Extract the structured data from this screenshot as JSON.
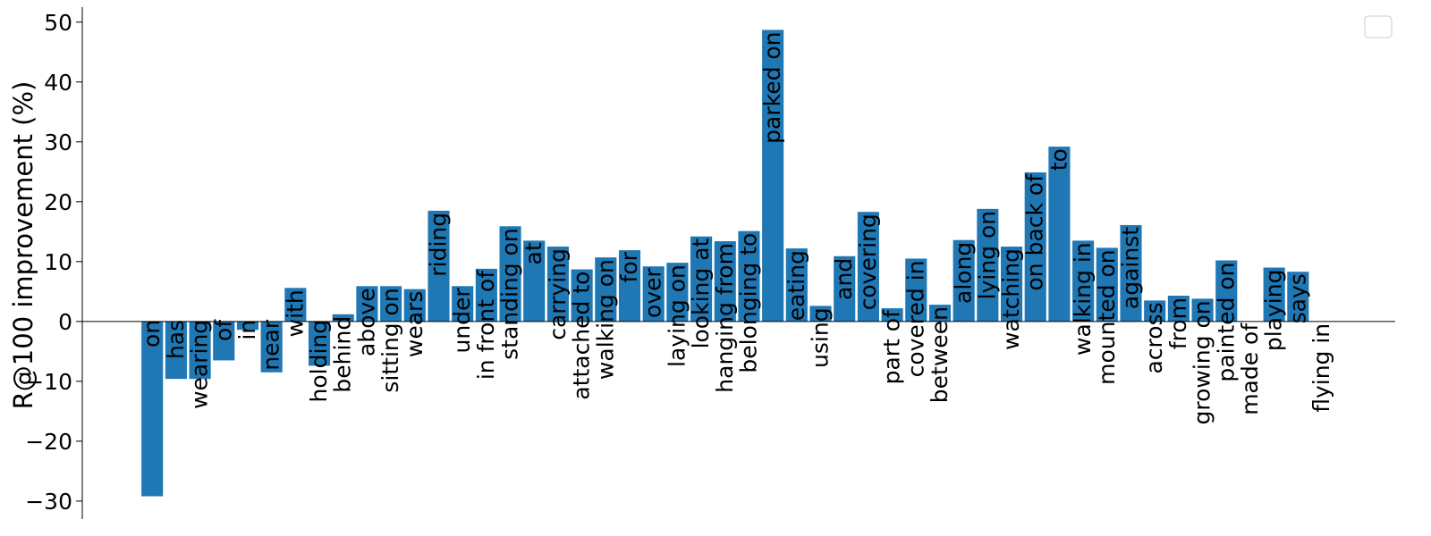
{
  "chart_data": {
    "type": "bar",
    "title": "",
    "xlabel": "",
    "ylabel": "R@100 improvement (%)",
    "ylim": [
      -33,
      52.5
    ],
    "yticks": [
      -30,
      -20,
      -10,
      0,
      10,
      20,
      30,
      40,
      50
    ],
    "bar_color": "#1f77b4",
    "grid": false,
    "legend": "top-right",
    "categories": [
      "on",
      "has",
      "wearing",
      "of",
      "in",
      "near",
      "with",
      "holding",
      "behind",
      "above",
      "sitting on",
      "wears",
      "riding",
      "under",
      "in front of",
      "standing on",
      "at",
      "carrying",
      "attached to",
      "walking on",
      "for",
      "over",
      "laying on",
      "looking at",
      "hanging from",
      "belonging to",
      "parked on",
      "eating",
      "using",
      "and",
      "covering",
      "part of",
      "covered in",
      "between",
      "along",
      "lying on",
      "watching",
      "on back of",
      "to",
      "walking in",
      "mounted on",
      "against",
      "across",
      "from",
      "growing on",
      "painted on",
      "made of",
      "playing",
      "says",
      "flying in"
    ],
    "values": [
      -29.2,
      -9.6,
      -9.6,
      -6.5,
      -1.4,
      -8.5,
      5.6,
      -7.4,
      1.2,
      5.9,
      5.9,
      5.4,
      18.5,
      5.9,
      8.8,
      15.9,
      13.5,
      12.5,
      8.7,
      10.7,
      11.9,
      9.2,
      9.8,
      14.2,
      13.4,
      15.1,
      48.7,
      12.2,
      2.6,
      10.9,
      18.3,
      2.2,
      10.5,
      2.8,
      13.6,
      18.8,
      12.5,
      24.9,
      29.2,
      13.5,
      12.3,
      16.1,
      3.5,
      4.3,
      3.8,
      10.2,
      0,
      9.0,
      8.3,
      0
    ]
  }
}
